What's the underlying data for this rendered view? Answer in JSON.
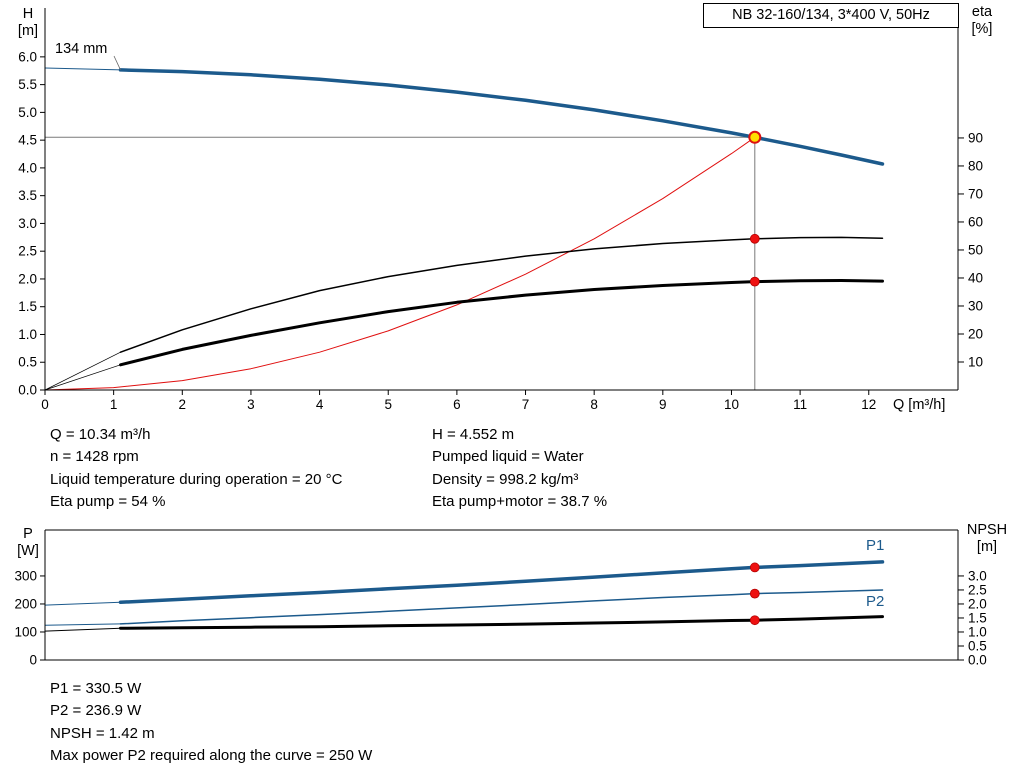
{
  "header": {
    "title_box": "NB 32-160/134, 3*400 V, 50Hz"
  },
  "colors": {
    "blue": "#1c5a8c",
    "red": "#e01010",
    "black": "#000000",
    "gray": "#7a7a7a",
    "dot": "#ee1111",
    "op_fill": "#ffdf00",
    "op_ring": "#dd1111"
  },
  "top_chart_labels": {
    "y_left_1": "H",
    "y_left_2": "[m]",
    "y_right_1": "eta",
    "y_right_2": "[%]",
    "x": "Q [m³/h]",
    "impeller": "134 mm"
  },
  "bottom_chart_labels": {
    "y_left_1": "P",
    "y_left_2": "[W]",
    "y_right_1": "NPSH",
    "y_right_2": "[m]",
    "p1": "P1",
    "p2": "P2"
  },
  "info_top": {
    "left": [
      "Q = 10.34 m³/h",
      "n = 1428 rpm",
      "Liquid temperature during operation = 20 °C",
      "Eta pump = 54 %"
    ],
    "right": [
      "H = 4.552 m",
      "Pumped liquid = Water",
      "Density = 998.2 kg/m³",
      "Eta pump+motor = 38.7 %"
    ]
  },
  "info_bottom": [
    "P1 = 330.5 W",
    "P2 = 236.9 W",
    "NPSH = 1.42 m",
    "Max power P2 required along the curve = 250 W"
  ],
  "chart_data": [
    {
      "id": "qh",
      "type": "line",
      "title": "NB 32-160/134, 3*400 V, 50Hz",
      "x_axis": {
        "label": "Q [m³/h]",
        "ticks": [
          0,
          1,
          2,
          3,
          4,
          5,
          6,
          7,
          8,
          9,
          10,
          11,
          12
        ],
        "range": [
          0,
          13.3
        ]
      },
      "y_left": {
        "label": "H [m]",
        "ticks": [
          0,
          0.5,
          1,
          1.5,
          2,
          2.5,
          3,
          3.5,
          4,
          4.5,
          5,
          5.5,
          6
        ],
        "range": [
          0,
          6.88
        ],
        "decimals": 1
      },
      "y_right": {
        "label": "eta [%]",
        "ticks": [
          10,
          20,
          30,
          40,
          50,
          60,
          70,
          80,
          90
        ],
        "range": [
          0,
          136.4
        ],
        "decimals": 0
      },
      "annotation_target": "head",
      "crosshair": {
        "x": 10.34,
        "y": 4.552
      },
      "series": [
        {
          "name": "head-lead",
          "axis": "left",
          "color": "#1c5a8c",
          "width": 1,
          "x": [
            0,
            1.1
          ],
          "y": [
            5.8,
            5.766
          ]
        },
        {
          "name": "head",
          "axis": "left",
          "color": "#1c5a8c",
          "width": 3.5,
          "x": [
            1.1,
            2,
            3,
            4,
            5,
            6,
            7,
            8,
            9,
            10,
            10.34,
            11,
            11.6,
            12.2
          ],
          "y": [
            5.766,
            5.734,
            5.677,
            5.596,
            5.493,
            5.366,
            5.217,
            5.045,
            4.849,
            4.631,
            4.552,
            4.39,
            4.233,
            4.07
          ]
        },
        {
          "name": "system",
          "axis": "left",
          "color": "#e01010",
          "width": 1,
          "x": [
            0,
            1,
            2,
            3,
            4,
            5,
            6,
            7,
            8,
            9,
            10,
            10.34
          ],
          "y": [
            0,
            0.043,
            0.17,
            0.383,
            0.681,
            1.064,
            1.532,
            2.086,
            2.724,
            3.448,
            4.257,
            4.552
          ]
        },
        {
          "name": "eta-pump-lead",
          "axis": "right",
          "color": "#000000",
          "width": 0.75,
          "x": [
            0,
            1.1
          ],
          "y": [
            0,
            13.5
          ]
        },
        {
          "name": "eta-pump",
          "axis": "right",
          "color": "#000000",
          "width": 1.5,
          "x": [
            1.1,
            2,
            3,
            4,
            5,
            6,
            7,
            8,
            9,
            10,
            10.34,
            11,
            11.6,
            12.2
          ],
          "y": [
            13.5,
            21.5,
            29,
            35.5,
            40.5,
            44.5,
            47.8,
            50.4,
            52.3,
            53.6,
            54,
            54.4,
            54.5,
            54.2
          ]
        },
        {
          "name": "eta-total-lead",
          "axis": "right",
          "color": "#000000",
          "width": 0.75,
          "x": [
            0,
            1.1
          ],
          "y": [
            0,
            9
          ]
        },
        {
          "name": "eta-total",
          "axis": "right",
          "color": "#000000",
          "width": 3,
          "x": [
            1.1,
            2,
            3,
            4,
            5,
            6,
            7,
            8,
            9,
            10,
            10.34,
            11,
            11.6,
            12.2
          ],
          "y": [
            9,
            14.5,
            19.5,
            24,
            28,
            31.3,
            33.9,
            35.9,
            37.3,
            38.4,
            38.7,
            39,
            39.1,
            38.9
          ]
        }
      ],
      "markers": [
        {
          "x": 10.34,
          "y": 54,
          "axis": "right",
          "kind": "dot"
        },
        {
          "x": 10.34,
          "y": 38.7,
          "axis": "right",
          "kind": "dot"
        },
        {
          "x": 10.34,
          "y": 4.552,
          "axis": "left",
          "kind": "op"
        }
      ],
      "operating_point": {
        "Q_m3h": 10.34,
        "H_m": 4.552,
        "eta_pump_pct": 54,
        "eta_pump_motor_pct": 38.7,
        "n_rpm": 1428,
        "impeller_mm": "134 mm"
      }
    },
    {
      "id": "power",
      "type": "line",
      "x_axis": {
        "label": "",
        "ticks": [],
        "range": [
          0,
          13.3
        ]
      },
      "y_left": {
        "label": "P [W]",
        "ticks": [
          0,
          100,
          200,
          300
        ],
        "range": [
          0,
          464
        ],
        "decimals": 0
      },
      "y_right": {
        "label": "NPSH [m]",
        "ticks": [
          0,
          0.5,
          1,
          1.5,
          2,
          2.5,
          3
        ],
        "range": [
          0,
          4.64
        ],
        "decimals": 1
      },
      "series": [
        {
          "name": "p1-lead",
          "axis": "left",
          "color": "#1c5a8c",
          "width": 1,
          "x": [
            0,
            1.1
          ],
          "y": [
            196,
            206
          ]
        },
        {
          "name": "p1",
          "axis": "left",
          "color": "#1c5a8c",
          "width": 3.5,
          "x": [
            1.1,
            2,
            3,
            4,
            5,
            6,
            7,
            8,
            9,
            10,
            10.34,
            11,
            12.2
          ],
          "y": [
            206,
            217,
            229,
            241,
            254,
            267,
            281,
            296,
            311,
            326,
            330.5,
            337,
            350
          ]
        },
        {
          "name": "p2-lead",
          "axis": "left",
          "color": "#1c5a8c",
          "width": 1,
          "x": [
            0,
            1.1
          ],
          "y": [
            124,
            129
          ]
        },
        {
          "name": "p2",
          "axis": "left",
          "color": "#1c5a8c",
          "width": 1.5,
          "x": [
            1.1,
            2,
            3,
            4,
            5,
            6,
            7,
            8,
            9,
            10,
            10.34,
            11,
            12.2
          ],
          "y": [
            129,
            140,
            151,
            162,
            174,
            186,
            198,
            211,
            223,
            233,
            236.9,
            241,
            250
          ]
        },
        {
          "name": "npsh-lead",
          "axis": "right",
          "color": "#000000",
          "width": 1,
          "x": [
            0,
            1.1
          ],
          "y": [
            1.03,
            1.13
          ]
        },
        {
          "name": "npsh",
          "axis": "right",
          "color": "#000000",
          "width": 3,
          "x": [
            1.1,
            2,
            3,
            4,
            5,
            6,
            7,
            8,
            9,
            10,
            10.34,
            11,
            12.2
          ],
          "y": [
            1.13,
            1.15,
            1.17,
            1.19,
            1.22,
            1.25,
            1.28,
            1.32,
            1.36,
            1.41,
            1.42,
            1.46,
            1.55
          ]
        }
      ],
      "markers": [
        {
          "x": 10.34,
          "y": 330.5,
          "axis": "left",
          "kind": "dot"
        },
        {
          "x": 10.34,
          "y": 236.9,
          "axis": "left",
          "kind": "dot"
        },
        {
          "x": 10.34,
          "y": 1.42,
          "axis": "right",
          "kind": "dot"
        }
      ],
      "operating_point": {
        "P1_W": 330.5,
        "P2_W": 236.9,
        "NPSH_m": 1.42,
        "P2_max_W": 250
      }
    }
  ]
}
